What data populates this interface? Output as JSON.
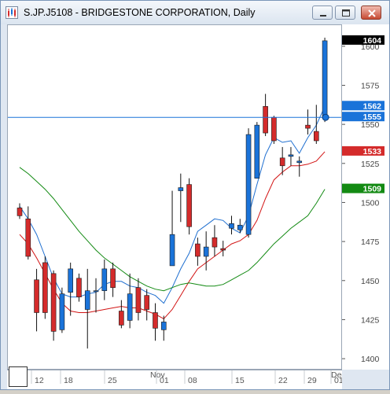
{
  "window": {
    "title": "S.JP.J5108 - BRIDGESTONE CORPORATION, Daily",
    "icon": "chart-app-icon",
    "buttons": [
      "minimize-icon",
      "maximize-icon",
      "close-icon"
    ]
  },
  "colors": {
    "bull": "#1a73d9",
    "bear": "#d42b2b",
    "ma_fast": "#1f6fd0",
    "ma_mid": "#d21414",
    "ma_slow": "#138a13",
    "crosshair": "#1a73d9"
  },
  "chart_data": {
    "type": "candlestick",
    "title": "S.JP.J5108 - BRIDGESTONE CORPORATION, Daily",
    "ylim": [
      1393,
      1614
    ],
    "y_ticks": [
      1400,
      1425,
      1450,
      1475,
      1500,
      1525,
      1550,
      1575,
      1600
    ],
    "x_labels": [
      "12",
      "18",
      "25",
      "Nov",
      "01",
      "08",
      "15",
      "22",
      "29",
      "Dec",
      "01"
    ],
    "candles": [
      {
        "o": 1497,
        "h": 1500,
        "l": 1490,
        "c": 1492
      },
      {
        "o": 1490,
        "h": 1498,
        "l": 1464,
        "c": 1466
      },
      {
        "o": 1451,
        "h": 1458,
        "l": 1418,
        "c": 1430
      },
      {
        "o": 1462,
        "h": 1466,
        "l": 1426,
        "c": 1430
      },
      {
        "o": 1455,
        "h": 1457,
        "l": 1412,
        "c": 1418
      },
      {
        "o": 1419,
        "h": 1446,
        "l": 1417,
        "c": 1442
      },
      {
        "o": 1443,
        "h": 1462,
        "l": 1428,
        "c": 1458
      },
      {
        "o": 1452,
        "h": 1455,
        "l": 1437,
        "c": 1440
      },
      {
        "o": 1432,
        "h": 1458,
        "l": 1407,
        "c": 1444
      },
      {
        "o": 1444,
        "h": 1452,
        "l": 1430,
        "c": 1444
      },
      {
        "o": 1444,
        "h": 1464,
        "l": 1438,
        "c": 1458
      },
      {
        "o": 1458,
        "h": 1462,
        "l": 1440,
        "c": 1446
      },
      {
        "o": 1431,
        "h": 1438,
        "l": 1420,
        "c": 1422
      },
      {
        "o": 1425,
        "h": 1455,
        "l": 1420,
        "c": 1442
      },
      {
        "o": 1446,
        "h": 1452,
        "l": 1425,
        "c": 1430
      },
      {
        "o": 1441,
        "h": 1445,
        "l": 1425,
        "c": 1432
      },
      {
        "o": 1430,
        "h": 1436,
        "l": 1412,
        "c": 1420
      },
      {
        "o": 1419,
        "h": 1428,
        "l": 1412,
        "c": 1424
      },
      {
        "o": 1460,
        "h": 1508,
        "l": 1460,
        "c": 1480
      },
      {
        "o": 1508,
        "h": 1519,
        "l": 1488,
        "c": 1510
      },
      {
        "o": 1512,
        "h": 1516,
        "l": 1480,
        "c": 1485
      },
      {
        "o": 1474,
        "h": 1478,
        "l": 1460,
        "c": 1466
      },
      {
        "o": 1466,
        "h": 1482,
        "l": 1457,
        "c": 1472
      },
      {
        "o": 1478,
        "h": 1486,
        "l": 1466,
        "c": 1472
      },
      {
        "o": 1471,
        "h": 1476,
        "l": 1466,
        "c": 1470
      },
      {
        "o": 1484,
        "h": 1492,
        "l": 1480,
        "c": 1487
      },
      {
        "o": 1483,
        "h": 1490,
        "l": 1481,
        "c": 1486
      },
      {
        "o": 1480,
        "h": 1548,
        "l": 1478,
        "c": 1544
      },
      {
        "o": 1516,
        "h": 1552,
        "l": 1516,
        "c": 1550
      },
      {
        "o": 1562,
        "h": 1570,
        "l": 1543,
        "c": 1545
      },
      {
        "o": 1555,
        "h": 1556,
        "l": 1538,
        "c": 1540
      },
      {
        "o": 1529,
        "h": 1536,
        "l": 1518,
        "c": 1524
      },
      {
        "o": 1530,
        "h": 1536,
        "l": 1524,
        "c": 1531
      },
      {
        "o": 1526,
        "h": 1530,
        "l": 1517,
        "c": 1527
      },
      {
        "o": 1550,
        "h": 1560,
        "l": 1544,
        "c": 1548
      },
      {
        "o": 1546,
        "h": 1563,
        "l": 1538,
        "c": 1540
      },
      {
        "o": 1555,
        "h": 1606,
        "l": 1552,
        "c": 1604
      }
    ],
    "series": [
      {
        "color": "ma_fast",
        "values": [
          1498,
          1490,
          1480,
          1466,
          1452,
          1442,
          1440,
          1440,
          1442,
          1443,
          1448,
          1450,
          1450,
          1447,
          1446,
          1443,
          1441,
          1436,
          1446,
          1458,
          1468,
          1482,
          1486,
          1490,
          1489,
          1484,
          1481,
          1492,
          1512,
          1531,
          1542,
          1539,
          1540,
          1532,
          1542,
          1550,
          1562
        ]
      },
      {
        "color": "ma_mid",
        "values": [
          1480,
          1474,
          1465,
          1455,
          1445,
          1436,
          1431,
          1430,
          1430,
          1431,
          1432,
          1433,
          1434,
          1433,
          1433,
          1431,
          1429,
          1426,
          1432,
          1441,
          1450,
          1458,
          1462,
          1466,
          1470,
          1474,
          1476,
          1480,
          1489,
          1503,
          1515,
          1520,
          1524,
          1524,
          1525,
          1527,
          1533
        ]
      },
      {
        "color": "ma_slow",
        "values": [
          1523,
          1519,
          1514,
          1509,
          1503,
          1496,
          1489,
          1482,
          1476,
          1470,
          1465,
          1461,
          1457,
          1453,
          1450,
          1447,
          1445,
          1444,
          1446,
          1448,
          1449,
          1448,
          1447,
          1447,
          1448,
          1451,
          1454,
          1457,
          1462,
          1468,
          1474,
          1479,
          1484,
          1488,
          1492,
          1500,
          1509
        ]
      }
    ],
    "price_tags": [
      {
        "label": "1604",
        "value": 1604,
        "color": "#000000"
      },
      {
        "label": "1562",
        "value": 1562,
        "color": "#1a73d9"
      },
      {
        "label": "1555",
        "value": 1555,
        "color": "#1a73d9"
      },
      {
        "label": "1533",
        "value": 1533,
        "color": "#d42b2b"
      },
      {
        "label": "1509",
        "value": 1509,
        "color": "#138a13"
      }
    ],
    "crosshair_value": 1555,
    "grid": false
  }
}
